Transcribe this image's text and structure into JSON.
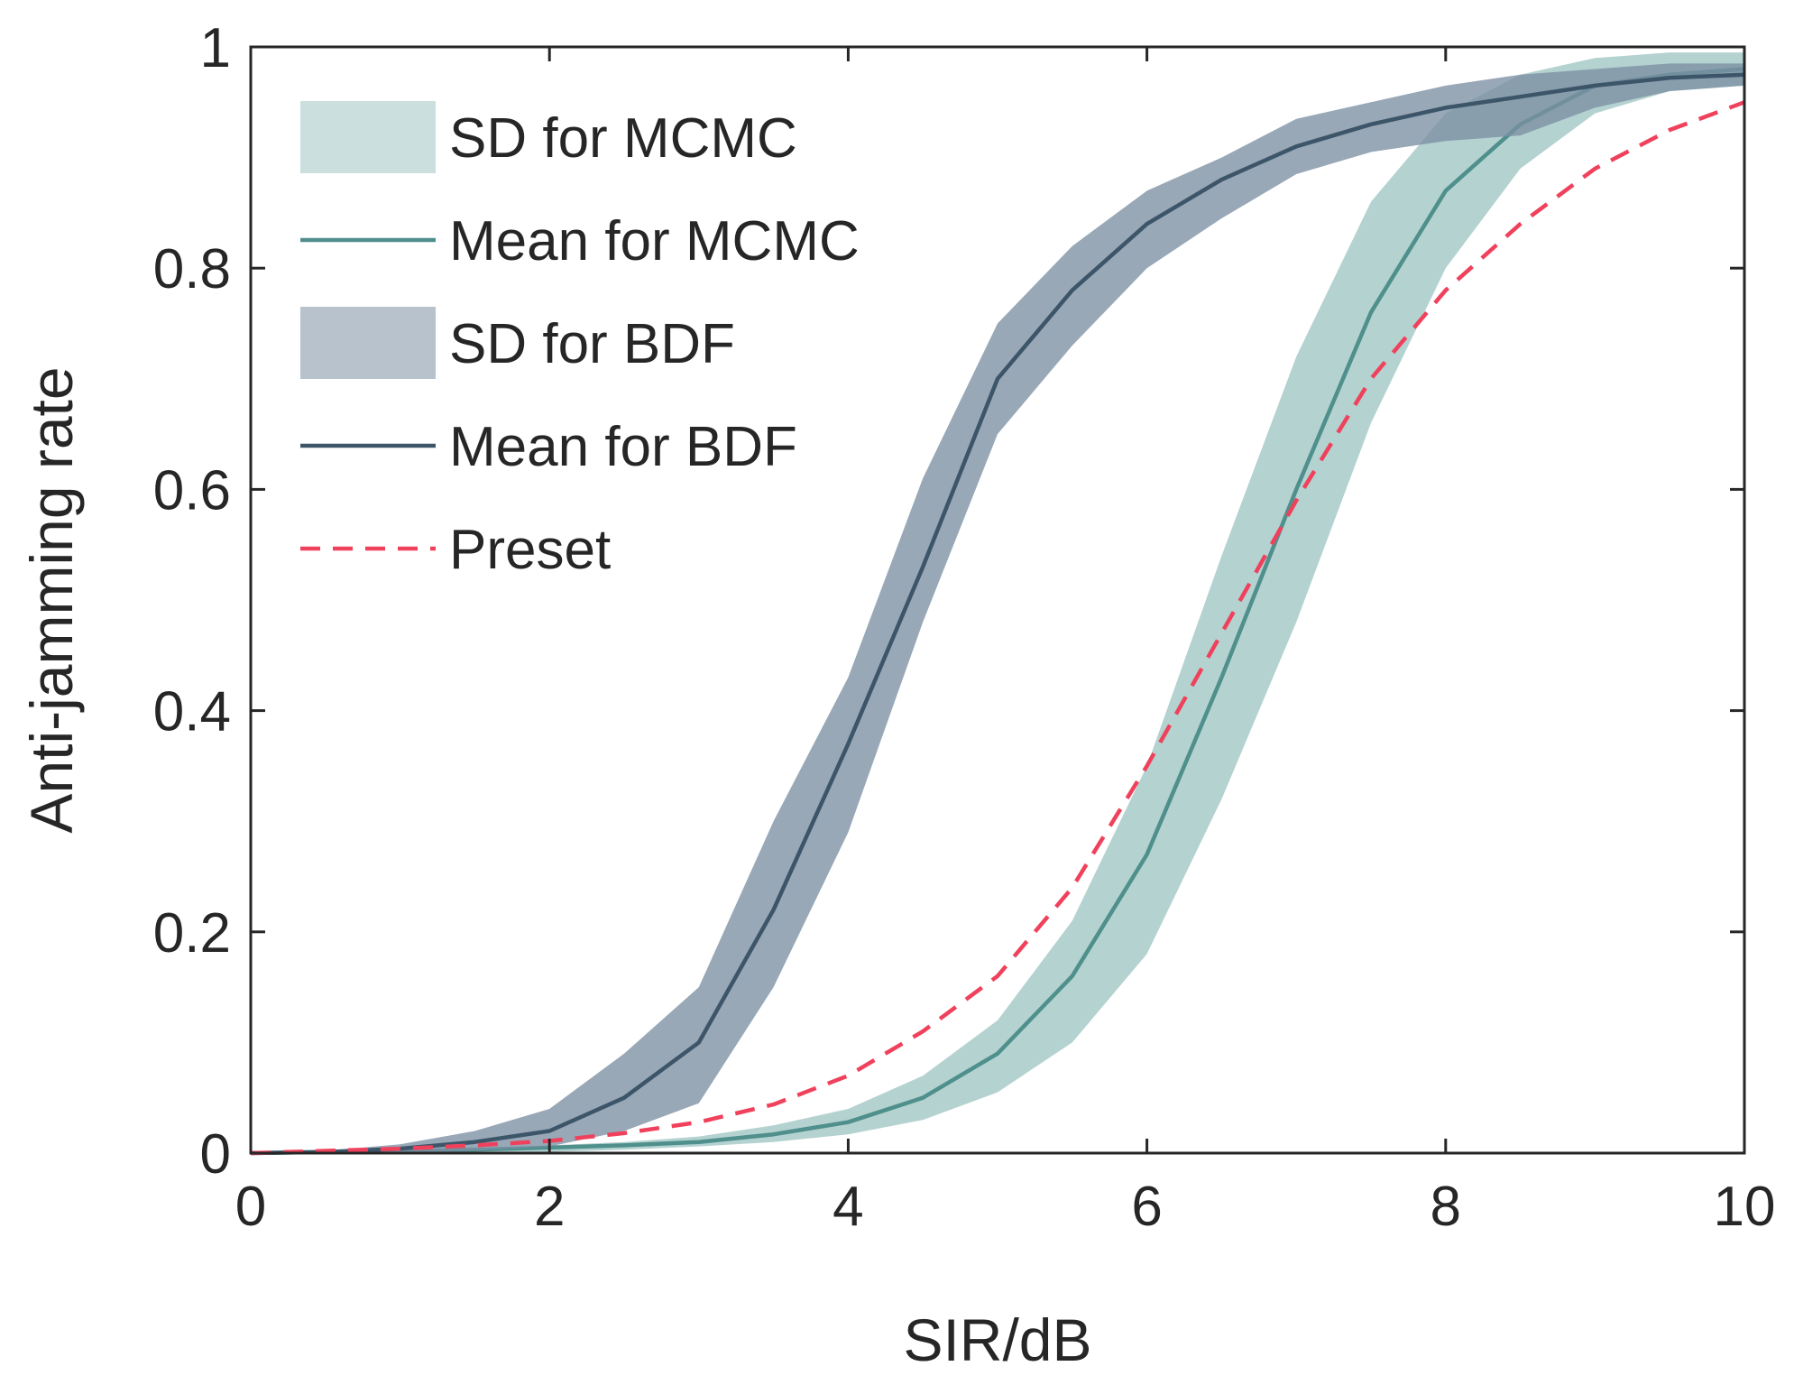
{
  "chart_data": {
    "type": "line",
    "title": "",
    "xlabel": "SIR/dB",
    "ylabel": "Anti-jamming rate",
    "xlim": [
      0,
      10
    ],
    "ylim": [
      0,
      1
    ],
    "xticks": [
      0,
      2,
      4,
      6,
      8,
      10
    ],
    "yticks": [
      0,
      0.2,
      0.4,
      0.6,
      0.8,
      1
    ],
    "xtick_labels": [
      "0",
      "2",
      "4",
      "6",
      "8",
      "10"
    ],
    "ytick_labels": [
      "0",
      "0.2",
      "0.4",
      "0.6",
      "0.8",
      "1"
    ],
    "grid": false,
    "legend_position": "top-left",
    "series": [
      {
        "name": "SD for MCMC",
        "kind": "band",
        "color": "#9fc5c3",
        "x": [
          0,
          0.5,
          1,
          1.5,
          2,
          2.5,
          3,
          3.5,
          4,
          4.5,
          5,
          5.5,
          6,
          6.5,
          7,
          7.5,
          8,
          8.5,
          9,
          9.5,
          10
        ],
        "lower": [
          0,
          0,
          0,
          0,
          0.001,
          0.003,
          0.006,
          0.01,
          0.017,
          0.03,
          0.055,
          0.1,
          0.18,
          0.32,
          0.48,
          0.66,
          0.8,
          0.89,
          0.94,
          0.96,
          0.965
        ],
        "upper": [
          0,
          0.001,
          0.002,
          0.004,
          0.007,
          0.01,
          0.015,
          0.025,
          0.04,
          0.07,
          0.12,
          0.21,
          0.35,
          0.54,
          0.72,
          0.86,
          0.94,
          0.975,
          0.99,
          0.995,
          0.995
        ]
      },
      {
        "name": "Mean for MCMC",
        "kind": "line",
        "color": "#4f8f8c",
        "x": [
          0,
          0.5,
          1,
          1.5,
          2,
          2.5,
          3,
          3.5,
          4,
          4.5,
          5,
          5.5,
          6,
          6.5,
          7,
          7.5,
          8,
          8.5,
          9,
          9.5,
          10
        ],
        "y": [
          0,
          0.001,
          0.002,
          0.003,
          0.005,
          0.007,
          0.01,
          0.017,
          0.028,
          0.05,
          0.09,
          0.16,
          0.27,
          0.43,
          0.6,
          0.76,
          0.87,
          0.93,
          0.965,
          0.975,
          0.98
        ]
      },
      {
        "name": "SD for BDF",
        "kind": "band",
        "color": "#7b8fa3",
        "x": [
          0,
          0.5,
          1,
          1.5,
          2,
          2.5,
          3,
          3.5,
          4,
          4.5,
          5,
          5.5,
          6,
          6.5,
          7,
          7.5,
          8,
          8.5,
          9,
          9.5,
          10
        ],
        "lower": [
          0,
          0,
          0,
          0.002,
          0.006,
          0.02,
          0.045,
          0.15,
          0.29,
          0.48,
          0.65,
          0.73,
          0.8,
          0.845,
          0.885,
          0.905,
          0.915,
          0.92,
          0.945,
          0.96,
          0.965
        ],
        "upper": [
          0,
          0.002,
          0.008,
          0.02,
          0.04,
          0.09,
          0.15,
          0.3,
          0.43,
          0.61,
          0.75,
          0.82,
          0.87,
          0.9,
          0.935,
          0.95,
          0.965,
          0.975,
          0.98,
          0.985,
          0.985
        ]
      },
      {
        "name": "Mean for BDF",
        "kind": "line",
        "color": "#3d5569",
        "x": [
          0,
          0.5,
          1,
          1.5,
          2,
          2.5,
          3,
          3.5,
          4,
          4.5,
          5,
          5.5,
          6,
          6.5,
          7,
          7.5,
          8,
          8.5,
          9,
          9.5,
          10
        ],
        "y": [
          0,
          0.001,
          0.004,
          0.01,
          0.02,
          0.05,
          0.1,
          0.22,
          0.37,
          0.53,
          0.7,
          0.78,
          0.84,
          0.88,
          0.91,
          0.93,
          0.945,
          0.955,
          0.965,
          0.972,
          0.975
        ]
      },
      {
        "name": "Preset",
        "kind": "dashed-line",
        "color": "#f0415c",
        "x": [
          0,
          0.5,
          1,
          1.5,
          2,
          2.5,
          3,
          3.5,
          4,
          4.5,
          5,
          5.5,
          6,
          6.5,
          7,
          7.5,
          8,
          8.5,
          9,
          9.5,
          10
        ],
        "y": [
          0,
          0.002,
          0.004,
          0.007,
          0.011,
          0.018,
          0.028,
          0.044,
          0.07,
          0.11,
          0.16,
          0.24,
          0.35,
          0.47,
          0.59,
          0.7,
          0.78,
          0.84,
          0.89,
          0.925,
          0.95
        ]
      }
    ]
  }
}
